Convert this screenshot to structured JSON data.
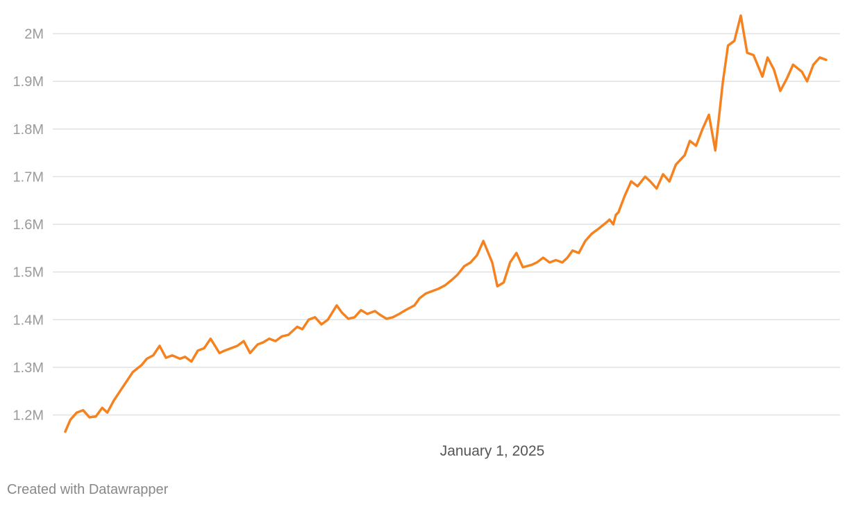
{
  "chart_data": {
    "type": "line",
    "title": "",
    "xlabel": "",
    "ylabel": "",
    "ylim": [
      1165000,
      2040000
    ],
    "yticks": [
      1200000,
      1300000,
      1400000,
      1500000,
      1600000,
      1700000,
      1800000,
      1900000,
      2000000
    ],
    "ytick_labels": [
      "1.2M",
      "1.3M",
      "1.4M",
      "1.5M",
      "1.6M",
      "1.7M",
      "1.8M",
      "1.9M",
      "2M"
    ],
    "x_range": [
      "2024-02-01",
      "2025-09-20"
    ],
    "xticks": [
      "2025-01-01"
    ],
    "xtick_labels": [
      "January 1, 2025"
    ],
    "grid": true,
    "line_color": "#f5821f",
    "series": [
      {
        "name": "",
        "x": [
          "2024-02-01",
          "2024-02-05",
          "2024-02-10",
          "2024-02-15",
          "2024-02-20",
          "2024-02-25",
          "2024-03-01",
          "2024-03-05",
          "2024-03-10",
          "2024-03-15",
          "2024-03-20",
          "2024-03-25",
          "2024-04-01",
          "2024-04-05",
          "2024-04-10",
          "2024-04-15",
          "2024-04-20",
          "2024-04-25",
          "2024-05-01",
          "2024-05-05",
          "2024-05-10",
          "2024-05-15",
          "2024-05-20",
          "2024-05-25",
          "2024-06-01",
          "2024-06-05",
          "2024-06-10",
          "2024-06-15",
          "2024-06-20",
          "2024-06-25",
          "2024-07-01",
          "2024-07-05",
          "2024-07-10",
          "2024-07-15",
          "2024-07-20",
          "2024-07-25",
          "2024-08-01",
          "2024-08-05",
          "2024-08-10",
          "2024-08-15",
          "2024-08-20",
          "2024-08-25",
          "2024-09-01",
          "2024-09-05",
          "2024-09-10",
          "2024-09-15",
          "2024-09-20",
          "2024-09-25",
          "2024-10-01",
          "2024-10-05",
          "2024-10-10",
          "2024-10-15",
          "2024-10-20",
          "2024-10-25",
          "2024-11-01",
          "2024-11-05",
          "2024-11-10",
          "2024-11-15",
          "2024-11-20",
          "2024-11-25",
          "2024-12-01",
          "2024-12-05",
          "2024-12-10",
          "2024-12-15",
          "2024-12-20",
          "2024-12-25",
          "2025-01-01",
          "2025-01-05",
          "2025-01-10",
          "2025-01-15",
          "2025-01-20",
          "2025-01-25",
          "2025-02-01",
          "2025-02-05",
          "2025-02-10",
          "2025-02-15",
          "2025-02-20",
          "2025-02-25",
          "2025-03-01",
          "2025-03-05",
          "2025-03-10",
          "2025-03-15",
          "2025-03-20",
          "2025-03-25",
          "2025-04-01",
          "2025-04-03",
          "2025-04-06",
          "2025-04-08",
          "2025-04-10",
          "2025-04-15",
          "2025-04-20",
          "2025-04-25",
          "2025-05-01",
          "2025-05-05",
          "2025-05-10",
          "2025-05-15",
          "2025-05-20",
          "2025-05-25",
          "2025-06-01",
          "2025-06-05",
          "2025-06-10",
          "2025-06-15",
          "2025-06-20",
          "2025-06-25",
          "2025-07-01",
          "2025-07-05",
          "2025-07-10",
          "2025-07-15",
          "2025-07-20",
          "2025-07-25",
          "2025-08-01",
          "2025-08-05",
          "2025-08-10",
          "2025-08-15",
          "2025-08-20",
          "2025-08-25",
          "2025-09-01",
          "2025-09-05",
          "2025-09-10",
          "2025-09-15",
          "2025-09-20"
        ],
        "values": [
          1165000,
          1190000,
          1205000,
          1210000,
          1195000,
          1197000,
          1215000,
          1205000,
          1230000,
          1250000,
          1270000,
          1290000,
          1305000,
          1318000,
          1325000,
          1345000,
          1320000,
          1325000,
          1318000,
          1322000,
          1312000,
          1335000,
          1340000,
          1360000,
          1330000,
          1335000,
          1340000,
          1345000,
          1355000,
          1330000,
          1348000,
          1352000,
          1360000,
          1355000,
          1365000,
          1368000,
          1385000,
          1380000,
          1400000,
          1405000,
          1390000,
          1400000,
          1430000,
          1415000,
          1402000,
          1405000,
          1420000,
          1412000,
          1418000,
          1410000,
          1402000,
          1405000,
          1412000,
          1420000,
          1430000,
          1445000,
          1455000,
          1460000,
          1465000,
          1472000,
          1485000,
          1495000,
          1512000,
          1520000,
          1535000,
          1565000,
          1520000,
          1470000,
          1478000,
          1520000,
          1540000,
          1510000,
          1515000,
          1520000,
          1530000,
          1520000,
          1525000,
          1520000,
          1530000,
          1545000,
          1540000,
          1565000,
          1580000,
          1590000,
          1605000,
          1610000,
          1600000,
          1620000,
          1625000,
          1660000,
          1690000,
          1680000,
          1700000,
          1690000,
          1675000,
          1705000,
          1690000,
          1725000,
          1745000,
          1775000,
          1765000,
          1800000,
          1830000,
          1755000,
          1900000,
          1975000,
          1985000,
          2038000,
          1960000,
          1955000,
          1910000,
          1950000,
          1925000,
          1880000,
          1905000,
          1935000,
          1920000,
          1900000,
          1935000,
          1950000,
          1945000
        ]
      }
    ]
  },
  "footer": {
    "credit": "Created with Datawrapper"
  }
}
